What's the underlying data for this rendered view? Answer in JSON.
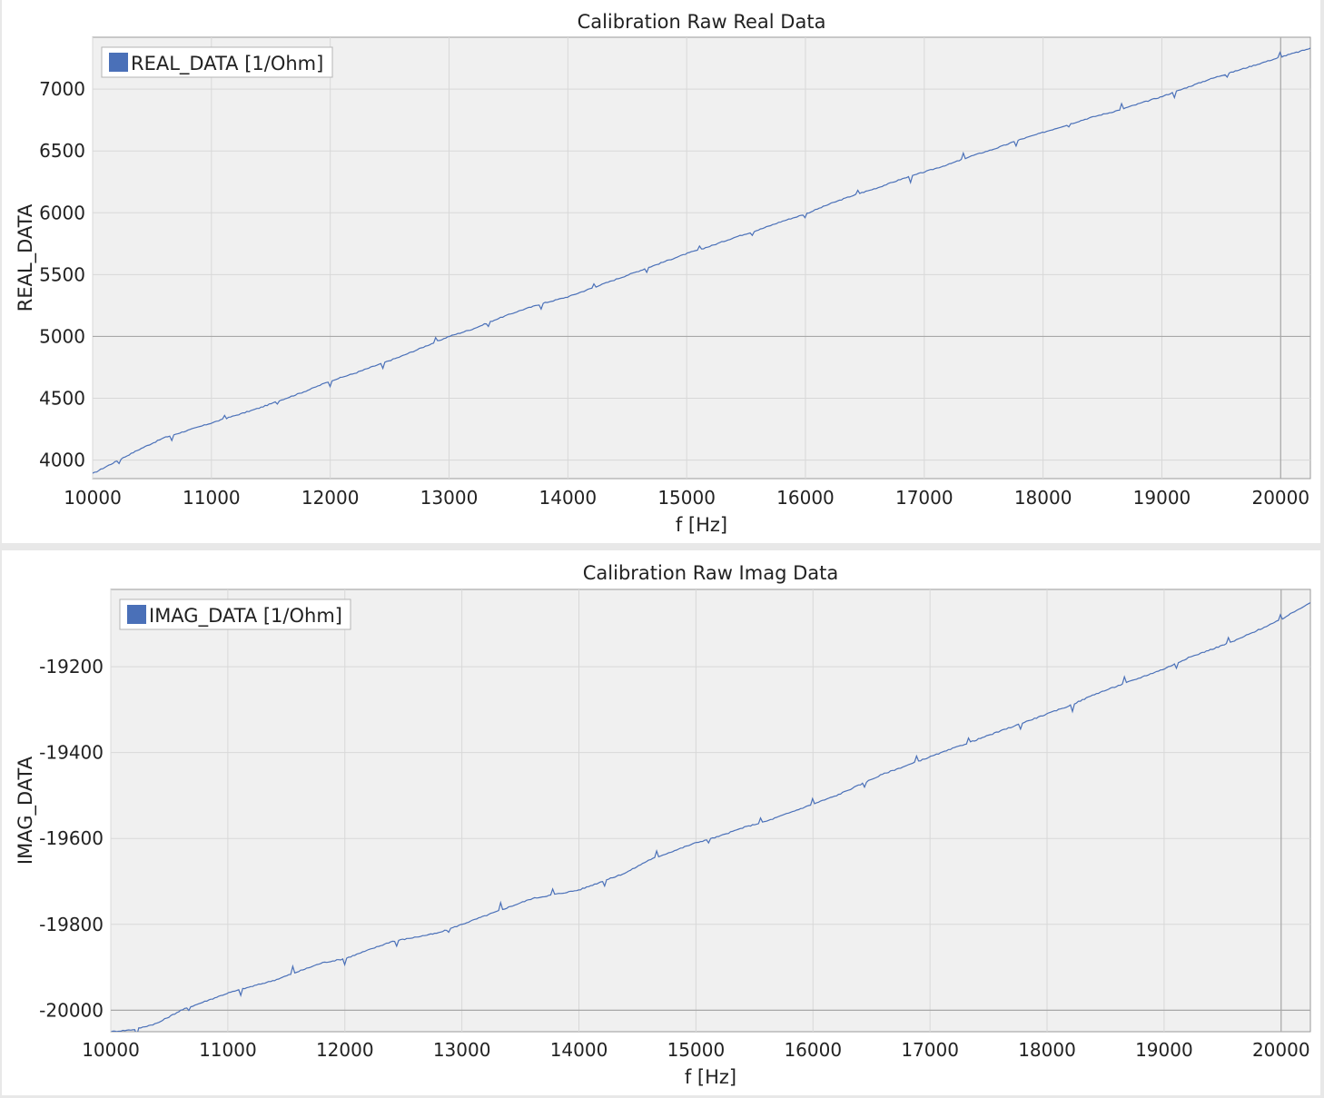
{
  "chart_data": [
    {
      "type": "line",
      "title": "Calibration Raw Real Data",
      "xlabel": "f [Hz]",
      "ylabel": "REAL_DATA",
      "xlim": [
        10000,
        20250
      ],
      "ylim": [
        3850,
        7420
      ],
      "x_ticks": [
        10000,
        11000,
        12000,
        13000,
        14000,
        15000,
        16000,
        17000,
        18000,
        19000,
        20000
      ],
      "y_ticks": [
        4000,
        4500,
        5000,
        5500,
        6000,
        6500,
        7000
      ],
      "reference_x": 20000,
      "reference_y": 5000,
      "legend": {
        "label": "REAL_DATA [1/Ohm]",
        "position": "top-left"
      },
      "grid": true,
      "series": [
        {
          "name": "REAL_DATA [1/Ohm]",
          "color": "#4a70b8",
          "x": [
            10000,
            10200,
            10400,
            10600,
            10800,
            11000,
            11200,
            11400,
            11600,
            11800,
            12000,
            12200,
            12400,
            12600,
            12800,
            13000,
            13200,
            13400,
            13600,
            13800,
            14000,
            14200,
            14400,
            14600,
            14800,
            15000,
            15200,
            15400,
            15600,
            15800,
            16000,
            16200,
            16400,
            16600,
            16800,
            17000,
            17200,
            17400,
            17600,
            17800,
            18000,
            18200,
            18400,
            18600,
            18800,
            19000,
            19200,
            19400,
            19600,
            19800,
            20000,
            20250
          ],
          "y": [
            3890,
            3990,
            4090,
            4180,
            4240,
            4300,
            4360,
            4420,
            4490,
            4560,
            4640,
            4700,
            4770,
            4840,
            4920,
            5000,
            5060,
            5140,
            5210,
            5270,
            5320,
            5390,
            5460,
            5530,
            5600,
            5670,
            5730,
            5800,
            5860,
            5930,
            5990,
            6070,
            6140,
            6200,
            6270,
            6330,
            6390,
            6460,
            6520,
            6590,
            6650,
            6710,
            6770,
            6820,
            6880,
            6940,
            7010,
            7080,
            7140,
            7200,
            7260,
            7330
          ]
        }
      ]
    },
    {
      "type": "line",
      "title": "Calibration Raw Imag Data",
      "xlabel": "f [Hz]",
      "ylabel": "IMAG_DATA",
      "xlim": [
        10000,
        20250
      ],
      "ylim": [
        -20050,
        -19020
      ],
      "x_ticks": [
        10000,
        11000,
        12000,
        13000,
        14000,
        15000,
        16000,
        17000,
        18000,
        19000,
        20000
      ],
      "y_ticks": [
        -20000,
        -19800,
        -19600,
        -19400,
        -19200
      ],
      "reference_x": 20000,
      "reference_y": -20000,
      "legend": {
        "label": "IMAG_DATA [1/Ohm]",
        "position": "top-left"
      },
      "grid": true,
      "series": [
        {
          "name": "IMAG_DATA [1/Ohm]",
          "color": "#4a70b8",
          "x": [
            10000,
            10200,
            10400,
            10600,
            10800,
            11000,
            11200,
            11400,
            11600,
            11800,
            12000,
            12200,
            12400,
            12600,
            12800,
            13000,
            13200,
            13400,
            13600,
            13800,
            14000,
            14200,
            14400,
            14600,
            14800,
            15000,
            15200,
            15400,
            15600,
            15800,
            16000,
            16200,
            16400,
            16600,
            16800,
            17000,
            17200,
            17400,
            17600,
            17800,
            18000,
            18200,
            18400,
            18600,
            18800,
            19000,
            19200,
            19400,
            19600,
            19800,
            20000,
            20250
          ],
          "y": [
            -20050,
            -20045,
            -20030,
            -20000,
            -19980,
            -19960,
            -19945,
            -19930,
            -19910,
            -19890,
            -19880,
            -19860,
            -19840,
            -19830,
            -19820,
            -19800,
            -19780,
            -19760,
            -19740,
            -19730,
            -19720,
            -19700,
            -19680,
            -19650,
            -19630,
            -19610,
            -19595,
            -19575,
            -19560,
            -19540,
            -19520,
            -19500,
            -19475,
            -19450,
            -19430,
            -19410,
            -19390,
            -19370,
            -19350,
            -19330,
            -19310,
            -19290,
            -19265,
            -19245,
            -19225,
            -19205,
            -19180,
            -19160,
            -19140,
            -19115,
            -19090,
            -19050
          ]
        }
      ]
    }
  ]
}
